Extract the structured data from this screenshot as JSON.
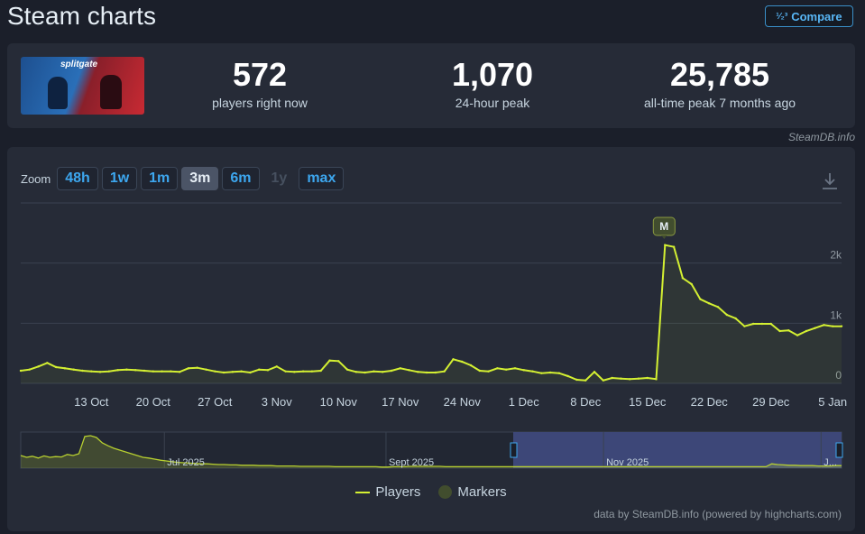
{
  "header": {
    "title": "Steam charts",
    "compare_label": "Compare",
    "compare_icon": "1 2 3 ratio icon"
  },
  "stats": [
    {
      "value": "572",
      "label": "players right now"
    },
    {
      "value": "1,070",
      "label": "24-hour peak"
    },
    {
      "value": "25,785",
      "label": "all-time peak 7 months ago"
    }
  ],
  "game_image": {
    "logo_text": "Splitgate"
  },
  "credit": "SteamDB.info",
  "zoom": {
    "label": "Zoom",
    "options": [
      "48h",
      "1w",
      "1m",
      "3m",
      "6m",
      "1y",
      "max"
    ],
    "active": "3m",
    "disabled": [
      "1y"
    ]
  },
  "chart_data": {
    "type": "line",
    "series": [
      {
        "name": "Players",
        "color": "#d4f032",
        "points": [
          [
            "Oct 5",
            210
          ],
          [
            "Oct 6",
            230
          ],
          [
            "Oct 7",
            280
          ],
          [
            "Oct 8",
            340
          ],
          [
            "Oct 9",
            270
          ],
          [
            "Oct 10",
            250
          ],
          [
            "Oct 11",
            230
          ],
          [
            "Oct 12",
            210
          ],
          [
            "Oct 13",
            200
          ],
          [
            "Oct 14",
            190
          ],
          [
            "Oct 15",
            200
          ],
          [
            "Oct 16",
            220
          ],
          [
            "Oct 17",
            230
          ],
          [
            "Oct 18",
            220
          ],
          [
            "Oct 19",
            210
          ],
          [
            "Oct 20",
            200
          ],
          [
            "Oct 21",
            200
          ],
          [
            "Oct 22",
            200
          ],
          [
            "Oct 23",
            190
          ],
          [
            "Oct 24",
            250
          ],
          [
            "Oct 25",
            260
          ],
          [
            "Oct 26",
            230
          ],
          [
            "Oct 27",
            200
          ],
          [
            "Oct 28",
            180
          ],
          [
            "Oct 29",
            190
          ],
          [
            "Oct 30",
            200
          ],
          [
            "Oct 31",
            180
          ],
          [
            "Nov 1",
            230
          ],
          [
            "Nov 2",
            220
          ],
          [
            "Nov 3",
            280
          ],
          [
            "Nov 4",
            200
          ],
          [
            "Nov 5",
            190
          ],
          [
            "Nov 6",
            200
          ],
          [
            "Nov 7",
            200
          ],
          [
            "Nov 8",
            210
          ],
          [
            "Nov 9",
            380
          ],
          [
            "Nov 10",
            370
          ],
          [
            "Nov 11",
            230
          ],
          [
            "Nov 12",
            190
          ],
          [
            "Nov 13",
            180
          ],
          [
            "Nov 14",
            200
          ],
          [
            "Nov 15",
            190
          ],
          [
            "Nov 16",
            210
          ],
          [
            "Nov 17",
            250
          ],
          [
            "Nov 18",
            220
          ],
          [
            "Nov 19",
            190
          ],
          [
            "Nov 20",
            180
          ],
          [
            "Nov 21",
            180
          ],
          [
            "Nov 22",
            200
          ],
          [
            "Nov 23",
            400
          ],
          [
            "Nov 24",
            360
          ],
          [
            "Nov 25",
            300
          ],
          [
            "Nov 26",
            210
          ],
          [
            "Nov 27",
            200
          ],
          [
            "Nov 28",
            250
          ],
          [
            "Nov 29",
            230
          ],
          [
            "Nov 30",
            250
          ],
          [
            "Dec 1",
            220
          ],
          [
            "Dec 2",
            200
          ],
          [
            "Dec 3",
            170
          ],
          [
            "Dec 4",
            180
          ],
          [
            "Dec 5",
            170
          ],
          [
            "Dec 6",
            120
          ],
          [
            "Dec 7",
            60
          ],
          [
            "Dec 8",
            50
          ],
          [
            "Dec 9",
            190
          ],
          [
            "Dec 10",
            50
          ],
          [
            "Dec 11",
            90
          ],
          [
            "Dec 12",
            80
          ],
          [
            "Dec 13",
            70
          ],
          [
            "Dec 14",
            80
          ],
          [
            "Dec 15",
            90
          ],
          [
            "Dec 16",
            70
          ],
          [
            "Dec 17",
            2300
          ],
          [
            "Dec 18",
            2270
          ],
          [
            "Dec 19",
            1750
          ],
          [
            "Dec 20",
            1650
          ],
          [
            "Dec 21",
            1400
          ],
          [
            "Dec 22",
            1330
          ],
          [
            "Dec 23",
            1270
          ],
          [
            "Dec 24",
            1140
          ],
          [
            "Dec 25",
            1080
          ],
          [
            "Dec 26",
            950
          ],
          [
            "Dec 27",
            990
          ],
          [
            "Dec 28",
            990
          ],
          [
            "Dec 29",
            990
          ],
          [
            "Dec 30",
            870
          ],
          [
            "Dec 31",
            880
          ],
          [
            "Jan 1",
            800
          ],
          [
            "Jan 2",
            870
          ],
          [
            "Jan 3",
            920
          ],
          [
            "Jan 4",
            970
          ],
          [
            "Jan 5",
            950
          ],
          [
            "Jan 6",
            950
          ]
        ]
      }
    ],
    "x_ticks": [
      "13 Oct",
      "20 Oct",
      "27 Oct",
      "3 Nov",
      "10 Nov",
      "17 Nov",
      "24 Nov",
      "1 Dec",
      "8 Dec",
      "15 Dec",
      "22 Dec",
      "29 Dec",
      "5 Jan"
    ],
    "y_ticks": [
      "0",
      "1k",
      "2k"
    ],
    "ylim": [
      0,
      3000
    ],
    "marker": {
      "label": "M",
      "x": "Dec 17"
    },
    "navigator": {
      "labels": [
        "Jul 2025",
        "Sept 2025",
        "Nov 2025",
        "J..."
      ],
      "values": [
        0.35,
        0.3,
        0.33,
        0.28,
        0.34,
        0.3,
        0.32,
        0.31,
        0.38,
        0.35,
        0.4,
        0.88,
        0.9,
        0.85,
        0.7,
        0.62,
        0.55,
        0.5,
        0.45,
        0.4,
        0.35,
        0.3,
        0.28,
        0.25,
        0.22,
        0.2,
        0.18,
        0.16,
        0.15,
        0.14,
        0.13,
        0.12,
        0.12,
        0.11,
        0.1,
        0.1,
        0.09,
        0.09,
        0.08,
        0.08,
        0.08,
        0.07,
        0.07,
        0.07,
        0.06,
        0.06,
        0.06,
        0.06,
        0.05,
        0.05,
        0.05,
        0.05,
        0.05,
        0.05,
        0.04,
        0.04,
        0.04,
        0.04,
        0.04,
        0.04,
        0.04,
        0.04,
        0.03,
        0.03,
        0.04,
        0.04,
        0.04,
        0.05,
        0.05,
        0.05,
        0.05,
        0.05,
        0.05,
        0.04,
        0.04,
        0.04,
        0.04,
        0.04,
        0.04,
        0.04,
        0.04,
        0.04,
        0.04,
        0.04,
        0.04,
        0.04,
        0.04,
        0.04,
        0.04,
        0.04,
        0.04,
        0.04,
        0.04,
        0.04,
        0.04,
        0.04,
        0.04,
        0.04,
        0.04,
        0.04,
        0.04,
        0.04,
        0.04,
        0.04,
        0.04,
        0.04,
        0.04,
        0.04,
        0.04,
        0.04,
        0.04,
        0.04,
        0.04,
        0.04,
        0.04,
        0.04,
        0.04,
        0.04,
        0.04,
        0.04,
        0.04,
        0.04,
        0.04,
        0.04,
        0.04,
        0.04,
        0.04,
        0.04,
        0.04,
        0.12,
        0.1,
        0.09,
        0.08,
        0.08,
        0.07,
        0.07,
        0.07,
        0.06,
        0.06,
        0.06,
        0.07,
        0.07
      ],
      "selection_start": 0.6,
      "selection_end": 1.0
    },
    "legend": [
      {
        "name": "Players",
        "color": "#d4f032"
      },
      {
        "name": "Markers",
        "color": "#414d2e"
      }
    ],
    "legend_placement": "bottom"
  },
  "source_text": "data by SteamDB.info (powered by highcharts.com)"
}
